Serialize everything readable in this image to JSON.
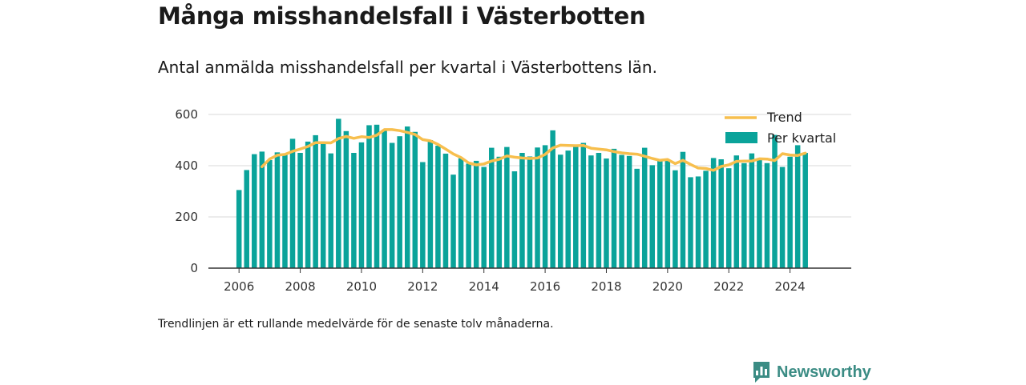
{
  "title": "Många misshandelsfall i Västerbotten",
  "subtitle": "Antal anmälda misshandelsfall per kvartal i Västerbottens län.",
  "footnote": "Trendlinjen är ett rullande medelvärde för de senaste tolv månaderna.",
  "brand": {
    "name": "Newsworthy",
    "logo_icon": "bar-chart-speech-bubble-icon",
    "color": "#3b8c84"
  },
  "chart_data": {
    "type": "bar",
    "x_start_year": 2006,
    "x_period": "quarter",
    "xlim": [
      2005,
      2026
    ],
    "ylim": [
      0,
      600
    ],
    "x_ticks": [
      "2006",
      "2008",
      "2010",
      "2012",
      "2014",
      "2016",
      "2018",
      "2020",
      "2022",
      "2024"
    ],
    "y_ticks": [
      "0",
      "200",
      "400",
      "600"
    ],
    "grid": true,
    "legend_position": "top-right",
    "series": [
      {
        "name": "Per kvartal",
        "type": "bar",
        "color": "#0aa39a",
        "values": [
          305,
          383,
          445,
          455,
          422,
          452,
          442,
          505,
          450,
          494,
          519,
          485,
          448,
          583,
          535,
          450,
          491,
          558,
          560,
          540,
          489,
          515,
          553,
          532,
          414,
          500,
          478,
          447,
          365,
          429,
          408,
          419,
          395,
          470,
          435,
          473,
          378,
          450,
          436,
          471,
          480,
          538,
          443,
          459,
          475,
          489,
          440,
          450,
          428,
          466,
          442,
          438,
          388,
          470,
          402,
          419,
          420,
          382,
          454,
          355,
          358,
          380,
          430,
          425,
          390,
          440,
          410,
          448,
          425,
          410,
          520,
          395,
          435,
          480,
          450
        ]
      },
      {
        "name": "Trend",
        "type": "line",
        "color": "#f7bf4e",
        "values": [
          null,
          null,
          null,
          396,
          426,
          441,
          444,
          456,
          465,
          475,
          490,
          490,
          489,
          506,
          514,
          507,
          513,
          510,
          519,
          541,
          541,
          537,
          530,
          522,
          502,
          497,
          483,
          465,
          446,
          432,
          411,
          403,
          407,
          418,
          425,
          438,
          433,
          430,
          428,
          430,
          444,
          469,
          480,
          479,
          478,
          479,
          468,
          465,
          462,
          455,
          450,
          447,
          445,
          437,
          428,
          421,
          424,
          408,
          421,
          405,
          391,
          389,
          382,
          397,
          403,
          417,
          418,
          418,
          427,
          426,
          420,
          447,
          442,
          440,
          449
        ]
      }
    ]
  }
}
